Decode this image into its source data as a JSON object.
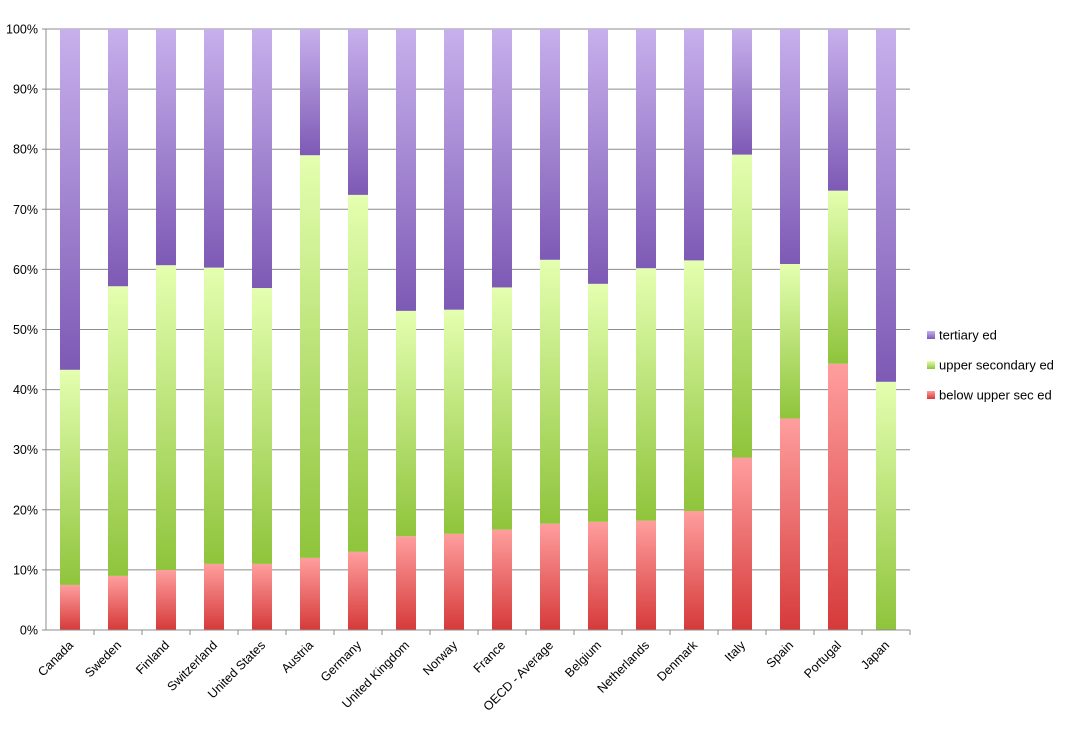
{
  "chart_data": {
    "type": "bar",
    "stacked": true,
    "percent_stacked": true,
    "categories": [
      "Canada",
      "Sweden",
      "Finland",
      "Switzerland",
      "United States",
      "Austria",
      "Germany",
      "United Kingdom",
      "Norway",
      "France",
      "OECD - Average",
      "Belgium",
      "Netherlands",
      "Denmark",
      "Italy",
      "Spain",
      "Portugal",
      "Japan"
    ],
    "series": [
      {
        "name": "below upper sec ed",
        "color_top": "#ff9e9e",
        "color_bottom": "#d63a3a",
        "values": [
          7.5,
          9,
          10,
          11,
          11,
          12,
          13,
          15.6,
          16,
          16.7,
          17.7,
          18,
          18.2,
          19.8,
          28.7,
          35.2,
          44.3,
          0
        ]
      },
      {
        "name": "upper secondary ed",
        "color_top": "#e4ffb0",
        "color_bottom": "#8fc43c",
        "values": [
          35.8,
          48.2,
          50.7,
          49.3,
          45.9,
          67,
          59.4,
          37.5,
          37.3,
          40.3,
          43.9,
          39.6,
          42,
          41.7,
          50.4,
          25.7,
          28.8,
          41.3
        ]
      },
      {
        "name": "tertiary ed",
        "color_top": "#c7b0ec",
        "color_bottom": "#7d5ab5",
        "values": [
          56.7,
          42.8,
          39.3,
          39.7,
          43.1,
          21,
          27.6,
          46.9,
          46.7,
          43,
          38.4,
          42.4,
          39.8,
          38.5,
          20.9,
          39.1,
          26.9,
          58.7
        ]
      }
    ],
    "ylim": [
      0,
      100
    ],
    "y_ticks": [
      "0%",
      "10%",
      "20%",
      "30%",
      "40%",
      "50%",
      "60%",
      "70%",
      "80%",
      "90%",
      "100%"
    ],
    "grid": true,
    "legend_placement": "right",
    "legend_order": [
      "tertiary ed",
      "upper secondary ed",
      "below upper sec ed"
    ]
  }
}
